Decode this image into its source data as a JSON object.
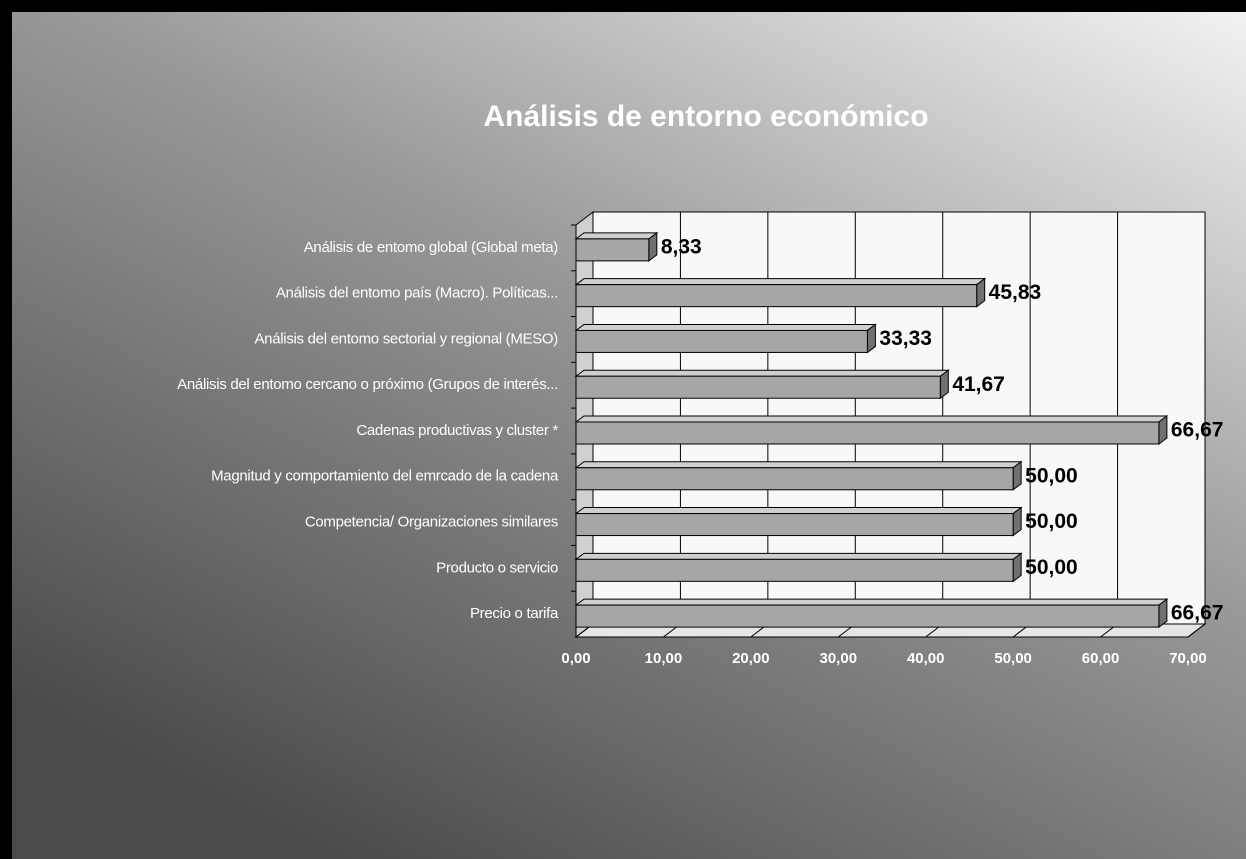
{
  "chart_data": {
    "type": "bar3d-horizontal",
    "title": "Análisis de  entorno económico",
    "categories": [
      "Análisis de entomo global (Global meta)",
      "Análisis del entomo país (Macro). Políticas...",
      "Análisis del entomo sectorial y regional (MESO)",
      "Análisis del entomo cercano o próximo (Grupos de interés...",
      "Cadenas productivas y cluster *",
      "Magnitud y comportamiento del emrcado de la cadena",
      "Competencia/ Organizaciones similares",
      "Producto o servicio",
      "Precio o tarifa"
    ],
    "values": [
      8.33,
      45.83,
      33.33,
      41.67,
      66.67,
      50.0,
      50.0,
      50.0,
      66.67
    ],
    "value_labels": [
      "8,33",
      "45,83",
      "33,33",
      "41,67",
      "66,67",
      "50,00",
      "50,00",
      "50,00",
      "66,67"
    ],
    "color": "#a6a6a6",
    "xlim": [
      0,
      70
    ],
    "xticks": [
      {
        "value": 0,
        "label": "0,00"
      },
      {
        "value": 10,
        "label": "10,00"
      },
      {
        "value": 20,
        "label": "20,00"
      },
      {
        "value": 30,
        "label": "30,00"
      },
      {
        "value": 40,
        "label": "40,00"
      },
      {
        "value": 50,
        "label": "50,00"
      },
      {
        "value": 60,
        "label": "60,00"
      },
      {
        "value": 70,
        "label": "70,00"
      }
    ],
    "grid": true
  }
}
